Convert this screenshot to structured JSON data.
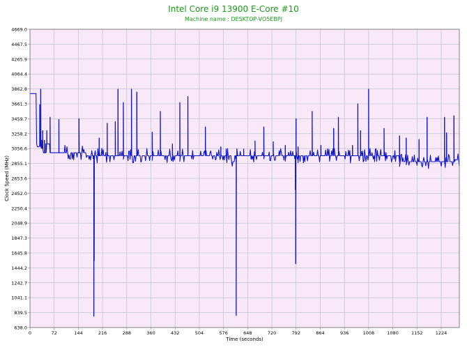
{
  "colors": {
    "title": "#1a9a1a",
    "series": "#0a14c8",
    "plot_bg": "#f8e8f8",
    "grid": "#b8b8c8",
    "frame": "#808080",
    "text": "#000000"
  },
  "chart_data": {
    "type": "line",
    "title": "Intel Core i9 13900 E-Core #10",
    "subtitle": "Machine name : DESKTOP-VO5EBPJ",
    "xlabel": "Time (seconds)",
    "ylabel": "Clock Speed (MHz)",
    "xlim": [
      0,
      1278
    ],
    "ylim": [
      638.0,
      4669.0
    ],
    "grid": true,
    "legend": "none",
    "x_ticks": [
      0,
      72,
      144,
      216,
      288,
      360,
      432,
      504,
      576,
      648,
      720,
      792,
      864,
      936,
      1008,
      1080,
      1152,
      1224
    ],
    "y_ticks": [
      "4669.0",
      "4467.5",
      "4265.9",
      "4064.4",
      "3862.8",
      "3661.3",
      "3459.7",
      "3258.2",
      "3056.6",
      "2855.1",
      "2653.6",
      "2452.0",
      "2250.4",
      "2048.9",
      "1847.3",
      "1645.8",
      "1444.2",
      "1242.7",
      "1041.1",
      "839.5",
      "638.0"
    ],
    "baseline": 2955,
    "series": [
      {
        "segments": [
          [
            0,
            3800
          ],
          [
            18,
            3800
          ],
          [
            19,
            3120
          ],
          [
            22,
            3080
          ],
          [
            28,
            3090
          ],
          [
            34,
            3060
          ],
          [
            40,
            3000
          ],
          [
            50,
            3120
          ],
          [
            60,
            3000
          ],
          [
            110,
            3000
          ],
          [
            114,
            2920
          ],
          [
            120,
            3000
          ],
          [
            170,
            2960
          ],
          [
            250,
            2960
          ],
          [
            300,
            2960
          ],
          [
            600,
            2880
          ],
          [
            610,
            2960
          ],
          [
            1080,
            2960
          ],
          [
            1100,
            2880
          ],
          [
            1258,
            2880
          ],
          [
            1265,
            2905
          ],
          [
            1278,
            2810
          ]
        ],
        "spikes": [
          [
            29,
            3650
          ],
          [
            32,
            3860
          ],
          [
            35,
            3170
          ],
          [
            38,
            3300
          ],
          [
            43,
            3170
          ],
          [
            47,
            3120
          ],
          [
            50,
            3300
          ],
          [
            60,
            3480
          ],
          [
            86,
            3450
          ],
          [
            146,
            3460
          ],
          [
            188,
            2920
          ],
          [
            190,
            790
          ],
          [
            191,
            1540
          ],
          [
            192,
            2920
          ],
          [
            206,
            3200
          ],
          [
            230,
            3400
          ],
          [
            254,
            3420
          ],
          [
            262,
            3860
          ],
          [
            278,
            3680
          ],
          [
            302,
            3860
          ],
          [
            318,
            3820
          ],
          [
            364,
            3280
          ],
          [
            388,
            3560
          ],
          [
            424,
            3120
          ],
          [
            446,
            3680
          ],
          [
            470,
            3760
          ],
          [
            522,
            3350
          ],
          [
            568,
            3080
          ],
          [
            584,
            3050
          ],
          [
            612,
            2920
          ],
          [
            614,
            800
          ],
          [
            616,
            3050
          ],
          [
            636,
            3050
          ],
          [
            670,
            3160
          ],
          [
            696,
            3350
          ],
          [
            724,
            3150
          ],
          [
            760,
            3100
          ],
          [
            788,
            2920
          ],
          [
            790,
            2500
          ],
          [
            791,
            1500
          ],
          [
            792,
            3460
          ],
          [
            798,
            3080
          ],
          [
            840,
            3560
          ],
          [
            866,
            3100
          ],
          [
            904,
            3330
          ],
          [
            918,
            3480
          ],
          [
            960,
            3100
          ],
          [
            976,
            3660
          ],
          [
            984,
            3300
          ],
          [
            1008,
            3860
          ],
          [
            1054,
            3330
          ],
          [
            1100,
            3230
          ],
          [
            1120,
            3200
          ],
          [
            1158,
            3180
          ],
          [
            1182,
            3480
          ],
          [
            1234,
            3480
          ],
          [
            1240,
            3270
          ],
          [
            1262,
            3500
          ]
        ]
      }
    ]
  }
}
